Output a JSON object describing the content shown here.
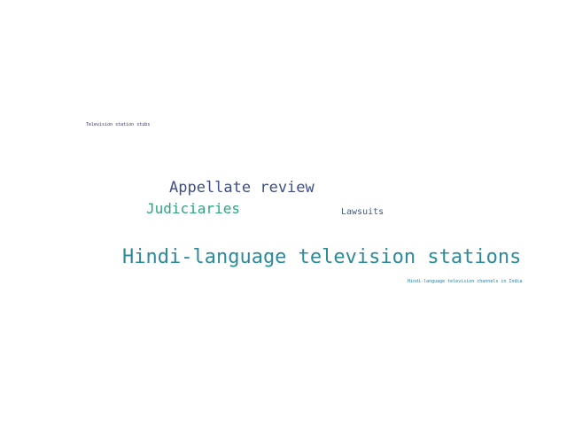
{
  "word_cloud": {
    "words": [
      {
        "text": "Television station stubs",
        "color": "#3b2f7e"
      },
      {
        "text": "Appellate review",
        "color": "#3d4e8a"
      },
      {
        "text": "Judiciaries",
        "color": "#2ea483"
      },
      {
        "text": "Lawsuits",
        "color": "#3a5a8c"
      },
      {
        "text": "Hindi-language television stations",
        "color": "#2c8a9a"
      },
      {
        "text": "Hindi-language television channels in India",
        "color": "#2a7aa0"
      }
    ]
  }
}
